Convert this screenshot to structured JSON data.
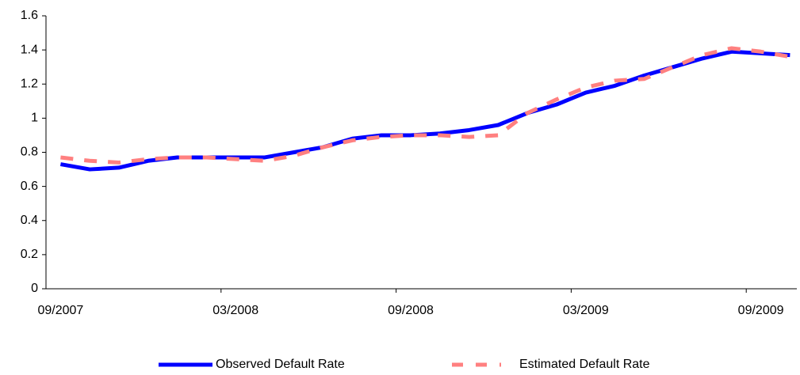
{
  "chart_data": {
    "type": "line",
    "categories": [
      "09/2007",
      null,
      null,
      null,
      null,
      null,
      "03/2008",
      null,
      null,
      null,
      null,
      null,
      "09/2008",
      null,
      null,
      null,
      null,
      null,
      "03/2009",
      null,
      null,
      null,
      null,
      null,
      "09/2009",
      null
    ],
    "series": [
      {
        "name": "Observed Default Rate",
        "color": "#0000ff",
        "dashed": false,
        "values": [
          0.73,
          0.7,
          0.71,
          0.75,
          0.77,
          0.77,
          0.77,
          0.77,
          0.8,
          0.83,
          0.88,
          0.9,
          0.9,
          0.91,
          0.93,
          0.96,
          1.03,
          1.08,
          1.15,
          1.19,
          1.25,
          1.3,
          1.35,
          1.39,
          1.38,
          1.37
        ]
      },
      {
        "name": "Estimated Default Rate",
        "color": "#ff8080",
        "dashed": true,
        "values": [
          0.77,
          0.75,
          0.74,
          0.76,
          0.77,
          0.77,
          0.76,
          0.75,
          0.78,
          0.83,
          0.87,
          0.89,
          0.9,
          0.9,
          0.89,
          0.9,
          1.03,
          1.11,
          1.18,
          1.22,
          1.23,
          1.3,
          1.37,
          1.41,
          1.39,
          1.36
        ]
      }
    ],
    "ylim": [
      0,
      1.6
    ],
    "yticks": [
      0,
      0.2,
      0.4,
      0.6,
      0.8,
      1,
      1.2,
      1.4,
      1.6
    ],
    "grid": false,
    "legend": "bottom"
  }
}
